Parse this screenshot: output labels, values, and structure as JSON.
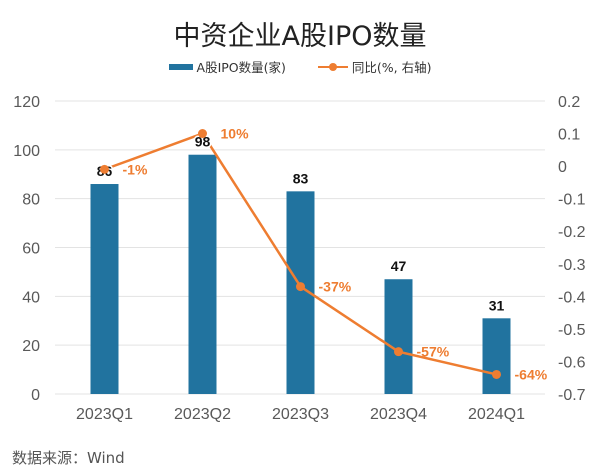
{
  "chart_data": {
    "type": "bar+line",
    "title": "中资企业A股IPO数量",
    "categories": [
      "2023Q1",
      "2023Q2",
      "2023Q3",
      "2023Q4",
      "2024Q1"
    ],
    "series": [
      {
        "name": "A股IPO数量(家)",
        "type": "bar",
        "axis": "left",
        "values": [
          86,
          98,
          83,
          47,
          31
        ],
        "labels": [
          "86",
          "98",
          "83",
          "47",
          "31"
        ],
        "color": "#21739f"
      },
      {
        "name": "同比(%, 右轴)",
        "type": "line",
        "axis": "right",
        "values": [
          -0.01,
          0.1,
          -0.37,
          -0.57,
          -0.64
        ],
        "labels": [
          "-1%",
          "10%",
          "-37%",
          "-57%",
          "-64%"
        ],
        "color": "#ee7d31"
      }
    ],
    "left_axis": {
      "range": [
        0,
        120
      ],
      "ticks": [
        "0",
        "20",
        "40",
        "60",
        "80",
        "100",
        "120"
      ]
    },
    "right_axis": {
      "range": [
        -0.7,
        0.2
      ],
      "ticks": [
        "-0.7",
        "-0.6",
        "-0.5",
        "-0.4",
        "-0.3",
        "-0.2",
        "-0.1",
        "0",
        "0.1",
        "0.2"
      ]
    },
    "grid": true,
    "legend": "top-center",
    "watermark": "Wind"
  },
  "source": "数据来源：Wind"
}
